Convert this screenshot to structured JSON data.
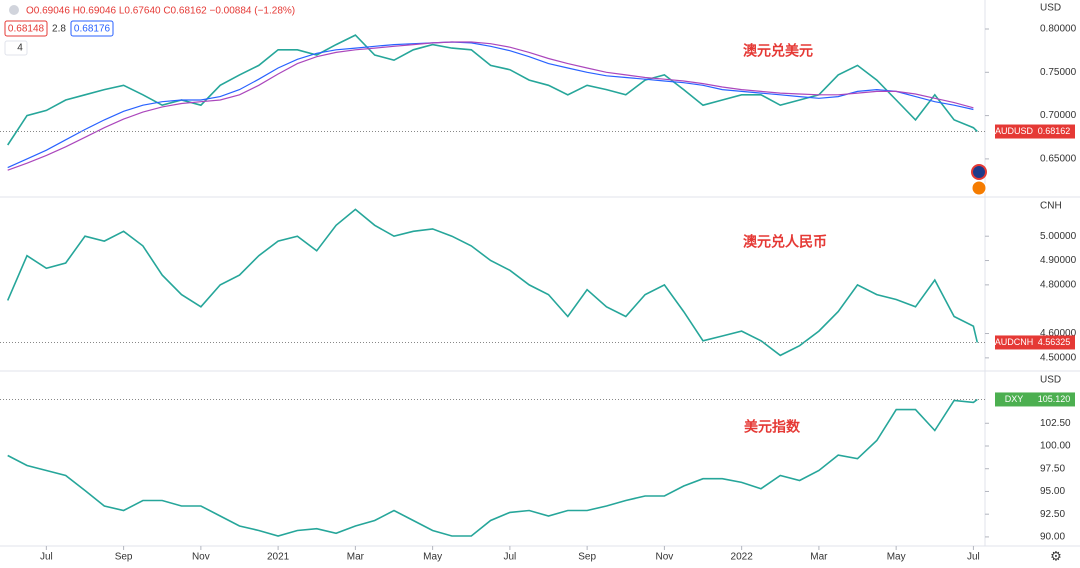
{
  "header": {
    "ohlc": "O0.69046 H0.69046 L0.67640 C0.68162 −0.00884 (−1.28%)",
    "bid": "0.68148",
    "spread": "2.8",
    "ask": "0.68176",
    "count": "4"
  },
  "chart_data": [
    {
      "type": "line",
      "title": "澳元兑美元",
      "unit": "USD",
      "last_label": {
        "name": "AUDUSD",
        "value": "0.68162"
      },
      "xlim": [
        -0.2,
        25.3
      ],
      "ylim": [
        0.606,
        0.8335
      ],
      "yticks": [
        {
          "value": 0.65,
          "label": "0.65000"
        },
        {
          "value": 0.7,
          "label": "0.70000"
        },
        {
          "value": 0.75,
          "label": "0.75000"
        },
        {
          "value": 0.8,
          "label": "0.80000"
        }
      ],
      "x": [
        0,
        0.5,
        1,
        1.5,
        2,
        2.5,
        3,
        3.5,
        4,
        4.5,
        5,
        5.5,
        6,
        6.5,
        7,
        7.5,
        8,
        8.5,
        9,
        9.5,
        10,
        10.5,
        11,
        11.5,
        12,
        12.5,
        13,
        13.5,
        14,
        14.5,
        15,
        15.5,
        16,
        16.5,
        17,
        17.5,
        18,
        18.5,
        19,
        19.5,
        20,
        20.5,
        21,
        21.5,
        22,
        22.5,
        23,
        23.5,
        24,
        24.5,
        25,
        25.1
      ],
      "series": [
        {
          "name": "AUDUSD",
          "color": "#26a69a",
          "values": [
            0.666,
            0.7,
            0.706,
            0.718,
            0.724,
            0.73,
            0.735,
            0.724,
            0.712,
            0.718,
            0.712,
            0.735,
            0.747,
            0.758,
            0.776,
            0.776,
            0.77,
            0.782,
            0.793,
            0.77,
            0.764,
            0.776,
            0.782,
            0.778,
            0.776,
            0.758,
            0.753,
            0.741,
            0.735,
            0.724,
            0.735,
            0.73,
            0.724,
            0.741,
            0.747,
            0.73,
            0.712,
            0.718,
            0.724,
            0.724,
            0.712,
            0.718,
            0.724,
            0.747,
            0.758,
            0.741,
            0.718,
            0.695,
            0.724,
            0.695,
            0.686,
            0.68162
          ]
        },
        {
          "color": "#2962ff",
          "values": [
            0.64,
            0.65,
            0.66,
            0.672,
            0.684,
            0.695,
            0.705,
            0.712,
            0.716,
            0.718,
            0.718,
            0.722,
            0.73,
            0.742,
            0.755,
            0.765,
            0.772,
            0.776,
            0.778,
            0.78,
            0.782,
            0.783,
            0.784,
            0.785,
            0.784,
            0.78,
            0.775,
            0.768,
            0.76,
            0.755,
            0.75,
            0.746,
            0.744,
            0.742,
            0.74,
            0.738,
            0.735,
            0.73,
            0.728,
            0.726,
            0.724,
            0.722,
            0.72,
            0.722,
            0.728,
            0.73,
            0.728,
            0.722,
            0.716,
            0.712,
            0.707,
            null
          ]
        },
        {
          "color": "#ab47bc",
          "values": [
            0.637,
            0.645,
            0.654,
            0.664,
            0.675,
            0.686,
            0.696,
            0.704,
            0.71,
            0.714,
            0.716,
            0.718,
            0.724,
            0.735,
            0.748,
            0.76,
            0.768,
            0.773,
            0.776,
            0.778,
            0.78,
            0.782,
            0.784,
            0.785,
            0.785,
            0.783,
            0.779,
            0.773,
            0.766,
            0.76,
            0.755,
            0.75,
            0.747,
            0.744,
            0.742,
            0.74,
            0.737,
            0.733,
            0.73,
            0.728,
            0.726,
            0.725,
            0.724,
            0.724,
            0.726,
            0.728,
            0.728,
            0.725,
            0.72,
            0.715,
            0.709,
            null
          ]
        }
      ]
    },
    {
      "type": "line",
      "title": "澳元兑人民币",
      "unit": "CNH",
      "last_label": {
        "name": "AUDCNH",
        "value": "4.56325"
      },
      "xlim": [
        -0.2,
        25.3
      ],
      "ylim": [
        4.446,
        5.157
      ],
      "yticks": [
        {
          "value": 4.5,
          "label": "4.50000"
        },
        {
          "value": 4.6,
          "label": "4.60000"
        },
        {
          "value": 4.8,
          "label": "4.80000"
        },
        {
          "value": 4.9,
          "label": "4.90000"
        },
        {
          "value": 5,
          "label": "5.00000"
        }
      ],
      "x": [
        0,
        0.5,
        1,
        1.5,
        2,
        2.5,
        3,
        3.5,
        4,
        4.5,
        5,
        5.5,
        6,
        6.5,
        7,
        7.5,
        8,
        8.5,
        9,
        9.5,
        10,
        10.5,
        11,
        11.5,
        12,
        12.5,
        13,
        13.5,
        14,
        14.5,
        15,
        15.5,
        16,
        16.5,
        17,
        17.5,
        18,
        18.5,
        19,
        19.5,
        20,
        20.5,
        21,
        21.5,
        22,
        22.5,
        23,
        23.5,
        24,
        24.5,
        25,
        25.1
      ],
      "series": [
        {
          "name": "AUDCNH",
          "color": "#26a69a",
          "values": [
            4.736,
            4.92,
            4.868,
            4.89,
            5.0,
            4.98,
            5.02,
            4.96,
            4.84,
            4.76,
            4.71,
            4.8,
            4.84,
            4.92,
            4.98,
            5.0,
            4.94,
            5.045,
            5.11,
            5.045,
            5.0,
            5.02,
            5.03,
            5.0,
            4.96,
            4.9,
            4.86,
            4.8,
            4.76,
            4.67,
            4.78,
            4.71,
            4.67,
            4.76,
            4.8,
            4.69,
            4.57,
            4.59,
            4.61,
            4.57,
            4.51,
            4.55,
            4.61,
            4.69,
            4.8,
            4.76,
            4.74,
            4.71,
            4.82,
            4.67,
            4.63,
            4.56325
          ]
        }
      ]
    },
    {
      "type": "line",
      "title": "美元指数",
      "unit": "USD",
      "last_label": {
        "name": "DXY",
        "value": "105.120"
      },
      "xlim": [
        -0.2,
        25.3
      ],
      "ylim": [
        89.0,
        108.14
      ],
      "yticks": [
        {
          "value": 90,
          "label": "90.00"
        },
        {
          "value": 92.5,
          "label": "92.50"
        },
        {
          "value": 95,
          "label": "95.00"
        },
        {
          "value": 97.5,
          "label": "97.50"
        },
        {
          "value": 100,
          "label": "100.00"
        },
        {
          "value": 102.5,
          "label": "102.50"
        }
      ],
      "xticks": [
        {
          "value": 1,
          "label": "Jul"
        },
        {
          "value": 3,
          "label": "Sep"
        },
        {
          "value": 5,
          "label": "Nov"
        },
        {
          "value": 7,
          "label": "2021"
        },
        {
          "value": 9,
          "label": "Mar"
        },
        {
          "value": 11,
          "label": "May"
        },
        {
          "value": 13,
          "label": "Jul"
        },
        {
          "value": 15,
          "label": "Sep"
        },
        {
          "value": 17,
          "label": "Nov"
        },
        {
          "value": 19,
          "label": "2022"
        },
        {
          "value": 21,
          "label": "Mar"
        },
        {
          "value": 23,
          "label": "May"
        },
        {
          "value": 25,
          "label": "Jul"
        }
      ],
      "x": [
        0,
        0.5,
        1,
        1.5,
        2,
        2.5,
        3,
        3.5,
        4,
        4.5,
        5,
        5.5,
        6,
        6.5,
        7,
        7.5,
        8,
        8.5,
        9,
        9.5,
        10,
        10.5,
        11,
        11.5,
        12,
        12.5,
        13,
        13.5,
        14,
        14.5,
        15,
        15.5,
        16,
        16.5,
        17,
        17.5,
        18,
        18.5,
        19,
        19.5,
        20,
        20.5,
        21,
        21.5,
        22,
        22.5,
        23,
        23.5,
        24,
        24.5,
        25,
        25.1
      ],
      "series": [
        {
          "name": "DXY",
          "color": "#26a69a",
          "values": [
            98.96,
            97.85,
            97.3,
            96.75,
            95.1,
            93.4,
            92.9,
            94.0,
            94.0,
            93.4,
            93.4,
            92.3,
            91.2,
            90.7,
            90.1,
            90.7,
            90.9,
            90.4,
            91.2,
            91.8,
            92.9,
            91.8,
            90.7,
            90.1,
            90.1,
            91.8,
            92.7,
            92.9,
            92.3,
            92.9,
            92.9,
            93.4,
            94.0,
            94.5,
            94.5,
            95.6,
            96.4,
            96.4,
            96.0,
            95.3,
            96.75,
            96.2,
            97.3,
            99.0,
            98.6,
            100.6,
            104.0,
            104.0,
            101.7,
            105.0,
            104.8,
            105.12
          ]
        }
      ]
    }
  ]
}
